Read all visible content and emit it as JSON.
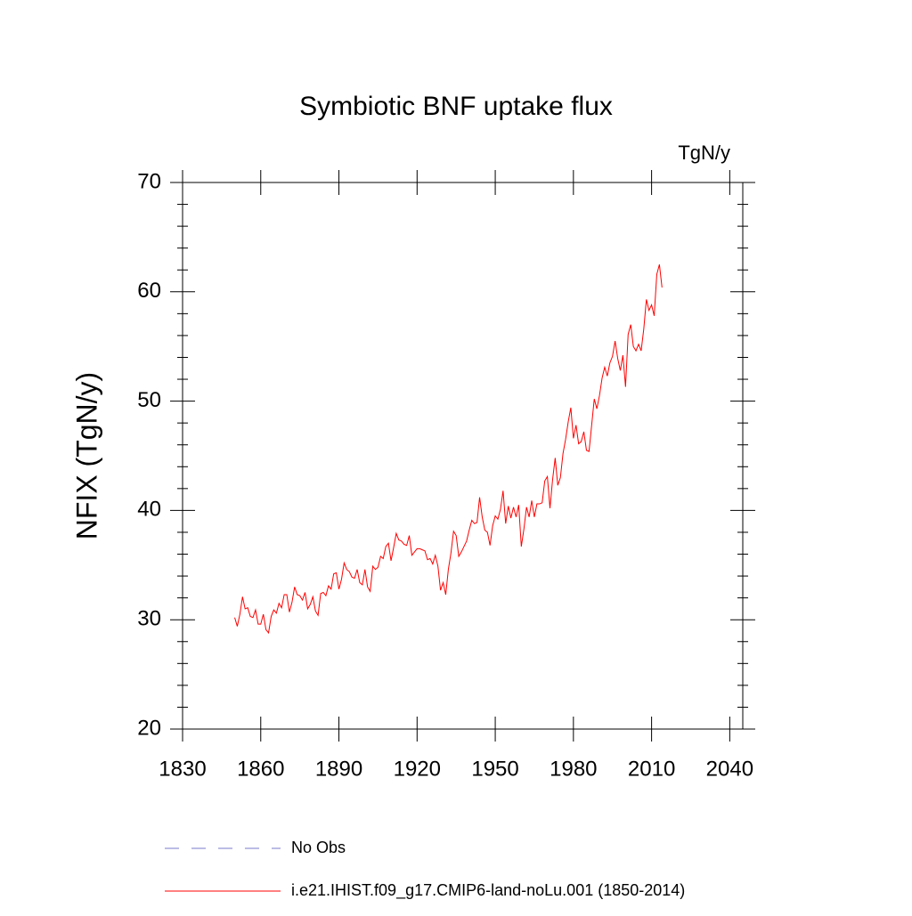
{
  "chart_data": {
    "type": "line",
    "title": "Symbiotic BNF uptake flux",
    "units_label": "TgN/y",
    "y_label": "NFIX  (TgN/y)",
    "xlim": [
      1830,
      2045
    ],
    "xticks": [
      1830,
      1860,
      1890,
      1920,
      1950,
      1980,
      2010,
      2040
    ],
    "ylim": [
      20,
      70
    ],
    "yticks": [
      20,
      30,
      40,
      50,
      60,
      70
    ],
    "yminorticks": [
      22,
      24,
      26,
      28,
      32,
      34,
      36,
      38,
      42,
      44,
      46,
      48,
      52,
      54,
      56,
      58,
      62,
      64,
      66,
      68
    ],
    "legend_items": [
      {
        "name": "No Obs",
        "color": "#7a7acc",
        "dashed": true
      }
    ],
    "x": [
      1850,
      1851,
      1852,
      1853,
      1854,
      1855,
      1856,
      1857,
      1858,
      1859,
      1860,
      1861,
      1862,
      1863,
      1864,
      1865,
      1866,
      1867,
      1868,
      1869,
      1870,
      1871,
      1872,
      1873,
      1874,
      1875,
      1876,
      1877,
      1878,
      1879,
      1880,
      1881,
      1882,
      1883,
      1884,
      1885,
      1886,
      1887,
      1888,
      1889,
      1890,
      1891,
      1892,
      1893,
      1894,
      1895,
      1896,
      1897,
      1898,
      1899,
      1900,
      1901,
      1902,
      1903,
      1904,
      1905,
      1906,
      1907,
      1908,
      1909,
      1910,
      1911,
      1912,
      1913,
      1914,
      1915,
      1916,
      1917,
      1918,
      1919,
      1920,
      1921,
      1922,
      1923,
      1924,
      1925,
      1926,
      1927,
      1928,
      1929,
      1930,
      1931,
      1932,
      1933,
      1934,
      1935,
      1936,
      1937,
      1938,
      1939,
      1940,
      1941,
      1942,
      1943,
      1944,
      1945,
      1946,
      1947,
      1948,
      1949,
      1950,
      1951,
      1952,
      1953,
      1954,
      1955,
      1956,
      1957,
      1958,
      1959,
      1960,
      1961,
      1962,
      1963,
      1964,
      1965,
      1966,
      1967,
      1968,
      1969,
      1970,
      1971,
      1972,
      1973,
      1974,
      1975,
      1976,
      1977,
      1978,
      1979,
      1980,
      1981,
      1982,
      1983,
      1984,
      1985,
      1986,
      1987,
      1988,
      1989,
      1990,
      1991,
      1992,
      1993,
      1994,
      1995,
      1996,
      1997,
      1998,
      1999,
      2000,
      2001,
      2002,
      2003,
      2004,
      2005,
      2006,
      2007,
      2008,
      2009,
      2010,
      2011,
      2012,
      2013,
      2014
    ],
    "series": [
      {
        "name": "i.e21.IHIST.f09_g17.CMIP6-land-noLu.001 (1850-2014)",
        "color": "#ff0000",
        "values": [
          30.2,
          29.4,
          30.5,
          32.1,
          31.0,
          31.1,
          30.3,
          30.2,
          30.9,
          29.6,
          29.6,
          30.5,
          29.1,
          28.8,
          30.3,
          30.9,
          30.6,
          31.5,
          31.1,
          32.3,
          32.3,
          30.7,
          31.6,
          33.0,
          32.3,
          32.2,
          31.8,
          32.5,
          31.0,
          31.4,
          32.1,
          30.8,
          30.4,
          32.4,
          32.5,
          32.2,
          33.1,
          32.8,
          34.2,
          34.3,
          32.8,
          33.7,
          35.2,
          34.6,
          34.4,
          33.9,
          33.8,
          34.6,
          33.4,
          33.2,
          34.6,
          33.0,
          32.6,
          34.9,
          34.6,
          34.8,
          35.8,
          35.6,
          36.7,
          37.0,
          35.4,
          36.6,
          37.9,
          37.3,
          37.2,
          36.9,
          36.8,
          37.7,
          35.9,
          36.2,
          36.5,
          36.5,
          36.4,
          36.3,
          35.5,
          35.6,
          35.1,
          35.9,
          34.9,
          32.7,
          33.4,
          32.3,
          34.6,
          36.1,
          38.1,
          37.7,
          35.8,
          36.2,
          36.7,
          37.2,
          38.2,
          39.1,
          38.8,
          38.9,
          41.2,
          39.4,
          38.2,
          38.0,
          36.8,
          38.6,
          39.5,
          39.2,
          40.1,
          41.8,
          38.8,
          40.4,
          39.3,
          40.3,
          39.4,
          40.5,
          36.7,
          38.3,
          40.3,
          39.4,
          40.9,
          39.4,
          40.6,
          40.6,
          40.7,
          42.7,
          43.1,
          40.2,
          42.8,
          44.8,
          42.3,
          43.0,
          45.2,
          46.5,
          48.1,
          49.4,
          46.6,
          47.8,
          46.1,
          46.3,
          47.2,
          45.5,
          45.4,
          47.8,
          50.2,
          49.3,
          50.5,
          52.1,
          53.1,
          52.3,
          53.5,
          54.1,
          55.5,
          53.9,
          52.8,
          54.2,
          51.3,
          56.1,
          57.0,
          55.0,
          54.6,
          55.2,
          54.6,
          56.6,
          59.3,
          58.3,
          58.8,
          57.8,
          61.6,
          62.5,
          60.4
        ]
      }
    ]
  }
}
